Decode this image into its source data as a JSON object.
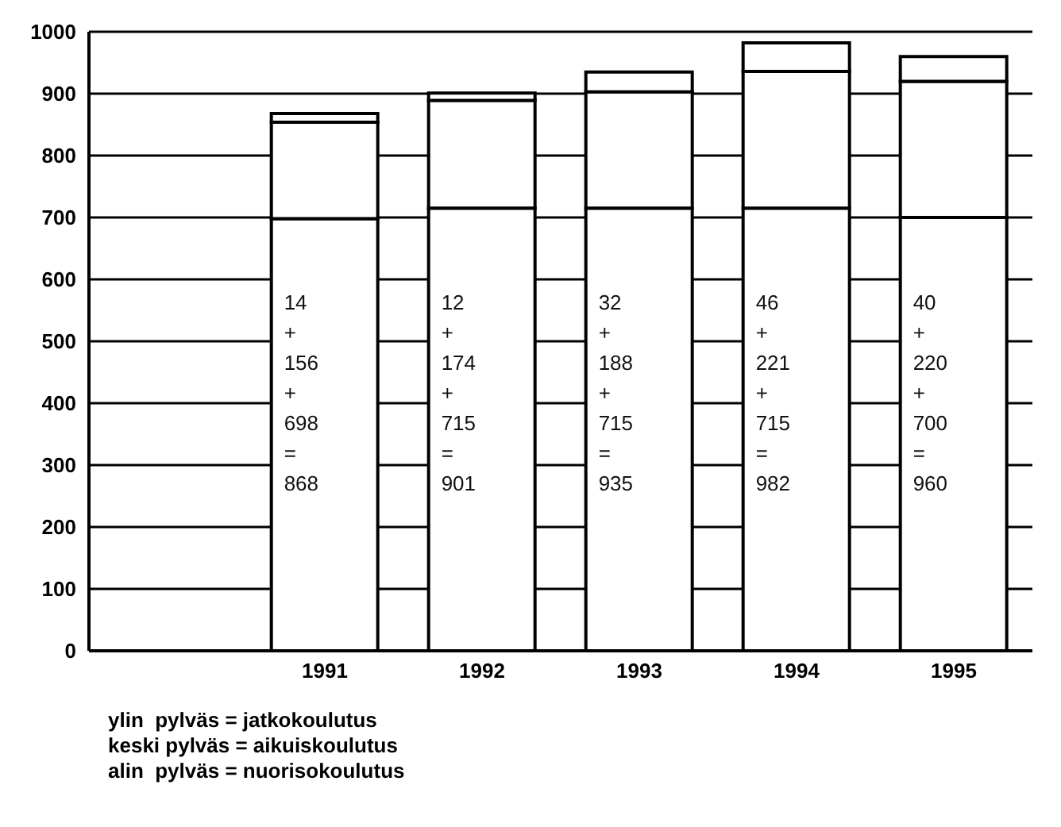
{
  "chart_data": {
    "type": "bar",
    "stacked": true,
    "categories": [
      null,
      "1991",
      "1992",
      "1993",
      "1994",
      "1995"
    ],
    "series": [
      {
        "color": "#ffffff",
        "values": [
          null,
          698,
          715,
          715,
          715,
          700
        ]
      },
      {
        "color": "#ffffff",
        "values": [
          null,
          156,
          174,
          188,
          221,
          220
        ]
      },
      {
        "color": "#ffffff",
        "values": [
          null,
          14,
          12,
          32,
          46,
          40
        ]
      }
    ],
    "ylim": [
      0,
      1000
    ],
    "yticks": [
      0,
      100,
      200,
      300,
      400,
      500,
      600,
      700,
      800,
      900,
      1000
    ],
    "grid": "y",
    "annotations": [
      "14\n+\n156\n+\n698\n=\n868",
      "12\n+\n174\n+\n715\n=\n901",
      "32\n+\n188\n+\n715\n=\n935",
      "46\n+\n221\n+\n715\n=\n982",
      "40\n+\n220\n+\n700\n=\n960",
      "ylin  pylväs = jatkokoulutus",
      "keski pylväs = aikuiskoulutus",
      "alin  pylväs = nuorisokoulutus"
    ]
  }
}
